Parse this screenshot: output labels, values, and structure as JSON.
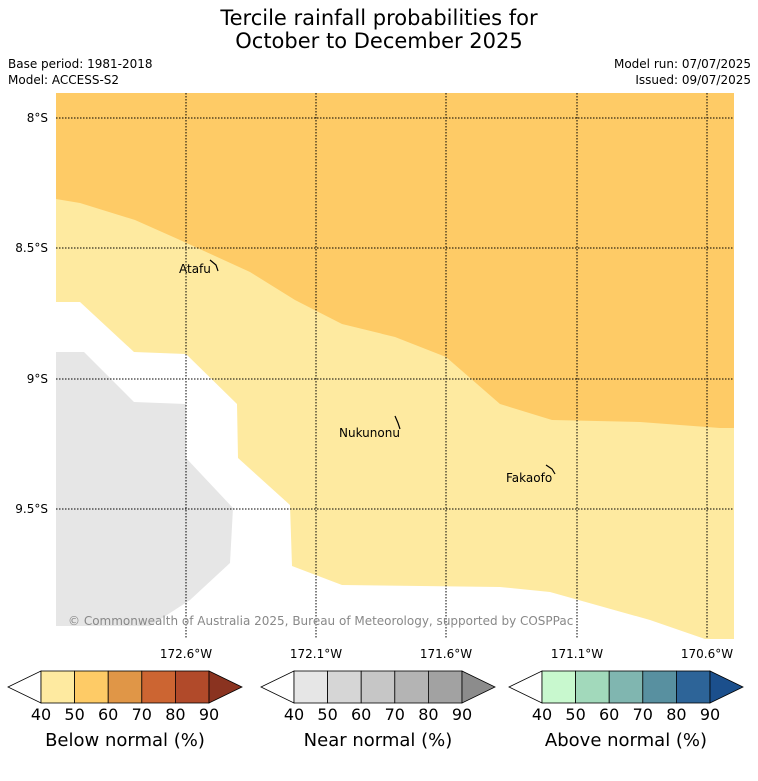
{
  "title": {
    "line1": "Tercile rainfall probabilities for",
    "line2": "October to December 2025"
  },
  "meta": {
    "base_period": "Base period: 1981-2018",
    "model": "Model: ACCESS-S2",
    "model_run": "Model run: 07/07/2025",
    "issued": "Issued: 09/07/2025"
  },
  "map": {
    "colors": {
      "below_50_60": "#fecb66",
      "below_40_50": "#feeaa0",
      "no_data_land": "#e6e6e6",
      "neutral": "#ffffff",
      "grid": "#000000"
    },
    "lat_labels": [
      "8°S",
      "8.5°S",
      "9°S",
      "9.5°S"
    ],
    "lon_labels": [
      "172.6°W",
      "172.1°W",
      "171.6°W",
      "171.1°W",
      "170.6°W"
    ],
    "places": [
      {
        "name": "Atafu"
      },
      {
        "name": "Nukunonu"
      },
      {
        "name": "Fakaofo"
      }
    ],
    "copyright": "© Commonwealth of Australia 2025, Bureau of Meteorology, supported by COSPPac"
  },
  "colorbars": [
    {
      "title": "Below normal (%)",
      "ticks": [
        "40",
        "50",
        "60",
        "70",
        "80",
        "90"
      ],
      "colors": [
        "#ffffff",
        "#feeaa0",
        "#fecb66",
        "#e09647",
        "#cc6532",
        "#b14a2a",
        "#8a3320"
      ]
    },
    {
      "title": "Near normal (%)",
      "ticks": [
        "40",
        "50",
        "60",
        "70",
        "80",
        "90"
      ],
      "colors": [
        "#ffffff",
        "#e6e6e6",
        "#d6d6d6",
        "#c6c6c6",
        "#b4b4b4",
        "#a2a2a2",
        "#8c8c8c"
      ]
    },
    {
      "title": "Above normal (%)",
      "ticks": [
        "40",
        "50",
        "60",
        "70",
        "80",
        "90"
      ],
      "colors": [
        "#ffffff",
        "#c8f8ce",
        "#a2d9bb",
        "#80b6b0",
        "#5890a0",
        "#2d6498",
        "#1b4f8c"
      ]
    }
  ]
}
